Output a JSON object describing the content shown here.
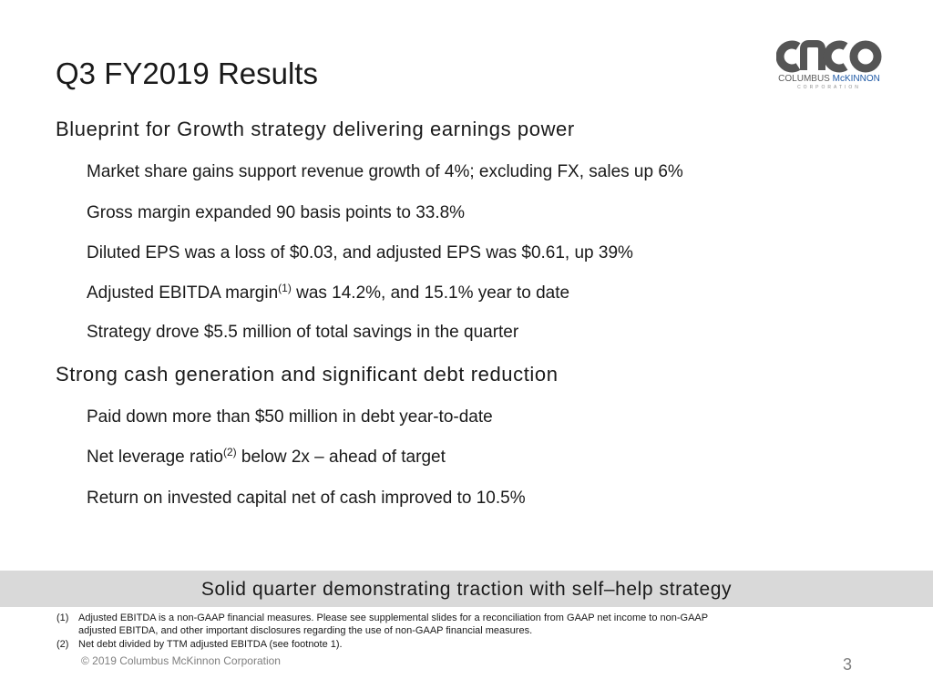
{
  "slide": {
    "title": "Q3 FY2019 Results"
  },
  "logo": {
    "name_part1": "COLUMBUS ",
    "name_part2": "McKINNON",
    "corporation": "CORPORATION",
    "colors": {
      "gray": "#555555",
      "blue": "#1f5aa6"
    }
  },
  "sections": [
    {
      "heading": "Blueprint for Growth strategy delivering earnings power",
      "bullets": [
        {
          "text": "Market share gains support revenue growth of 4%; excluding FX, sales up 6%"
        },
        {
          "text": "Gross margin expanded 90 basis points to 33.8%"
        },
        {
          "text": "Diluted EPS was a loss of $0.03, and adjusted EPS was $0.61, up 39%"
        },
        {
          "before": "Adjusted EBITDA margin",
          "sup": "(1)",
          "after": " was 14.2%, and 15.1% year to date"
        },
        {
          "text": "Strategy drove $5.5 million of total savings in the quarter"
        }
      ]
    },
    {
      "heading": "Strong cash generation and significant debt reduction",
      "bullets": [
        {
          "text": "Paid down more than $50 million in debt year-to-date"
        },
        {
          "before": "Net leverage ratio",
          "sup": "(2)",
          "after": " below 2x – ahead of target"
        },
        {
          "text": "Return on invested capital net of cash improved to 10.5%"
        }
      ]
    }
  ],
  "banner": {
    "text": "Solid quarter demonstrating traction with self–help strategy",
    "background": "#d9d9d9"
  },
  "footnotes": [
    {
      "num": "(1)",
      "line1": "Adjusted EBITDA is a non-GAAP financial measures.  Please see supplemental slides for a reconciliation from GAAP net income to non-GAAP",
      "line2": "adjusted EBITDA, and other important disclosures regarding the use of non-GAAP financial measures."
    },
    {
      "num": "(2)",
      "line1": "Net debt divided by TTM adjusted EBITDA (see footnote 1)."
    }
  ],
  "footer": {
    "copyright": "© 2019 Columbus McKinnon Corporation",
    "page_number": "3"
  }
}
